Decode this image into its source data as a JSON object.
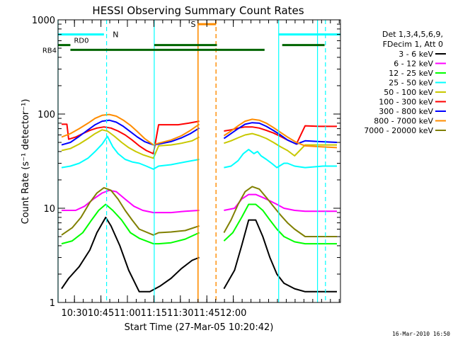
{
  "chart_data": {
    "type": "line",
    "title": "HESSI Observing Summary Count Rates",
    "xlabel": "Start Time (27-Mar-05 10:20:42)",
    "ylabel": "Count Rate (s⁻¹ detector⁻¹)",
    "yscale": "log",
    "ylim": [
      1,
      1000
    ],
    "xlim_minutes": [
      0,
      160
    ],
    "x_ticks": [
      "10:30",
      "10:45",
      "11:00",
      "11:15",
      "11:30",
      "11:45",
      "12:00"
    ],
    "y_ticks": [
      "1",
      "10",
      "100",
      "1000"
    ],
    "grid": false,
    "legend_position": "top-right",
    "legend_header": [
      "Det 1,3,4,5,6,9,",
      "FDecim 1, Att 0"
    ],
    "timestamp": "16-Mar-2010 16:50",
    "gaps": [
      [
        80.5,
        94
      ]
    ],
    "markers": {
      "n_label": "N",
      "s_label": "S",
      "rd0_label": "RD0",
      "rb4_label": "RB4",
      "cyan_solid_x": [
        0,
        54.5,
        125,
        147
      ],
      "cyan_dashed_x": [
        27.5,
        151.5
      ],
      "orange_solid_x": [
        79.3
      ],
      "orange_dashed_x": [
        89.5
      ]
    },
    "series": [
      {
        "name": "3 - 6 keV",
        "color": "#000000",
        "values": [
          [
            2,
            1.4
          ],
          [
            6,
            1.8
          ],
          [
            12,
            2.4
          ],
          [
            18,
            3.6
          ],
          [
            22,
            5.5
          ],
          [
            27,
            8
          ],
          [
            30,
            6.5
          ],
          [
            35,
            4
          ],
          [
            40,
            2.2
          ],
          [
            46,
            1.3
          ],
          [
            52,
            1.3
          ],
          [
            58,
            1.5
          ],
          [
            64,
            1.8
          ],
          [
            70,
            2.3
          ],
          [
            76,
            2.8
          ],
          [
            80,
            3
          ],
          [
            94,
            1.4
          ],
          [
            100,
            2.2
          ],
          [
            104,
            4
          ],
          [
            108,
            7.5
          ],
          [
            112,
            7.5
          ],
          [
            116,
            5
          ],
          [
            120,
            3
          ],
          [
            124,
            2
          ],
          [
            128,
            1.6
          ],
          [
            134,
            1.4
          ],
          [
            140,
            1.3
          ],
          [
            146,
            1.3
          ],
          [
            150,
            1.3
          ],
          [
            158,
            1.3
          ]
        ]
      },
      {
        "name": "6 - 12 keV",
        "color": "#ff00ff",
        "values": [
          [
            2,
            9.5
          ],
          [
            10,
            9.5
          ],
          [
            15,
            10.5
          ],
          [
            20,
            12.5
          ],
          [
            25,
            14.5
          ],
          [
            29,
            15.5
          ],
          [
            33,
            15
          ],
          [
            38,
            12.5
          ],
          [
            43,
            10.5
          ],
          [
            48,
            9.5
          ],
          [
            54,
            9
          ],
          [
            57,
            9
          ],
          [
            64,
            9
          ],
          [
            72,
            9.3
          ],
          [
            80,
            9.5
          ],
          [
            94,
            9.5
          ],
          [
            100,
            10
          ],
          [
            104,
            12.5
          ],
          [
            108,
            14
          ],
          [
            112,
            14
          ],
          [
            116,
            13
          ],
          [
            120,
            12
          ],
          [
            124,
            11
          ],
          [
            128,
            10
          ],
          [
            134,
            9.5
          ],
          [
            140,
            9.3
          ],
          [
            150,
            9.3
          ],
          [
            158,
            9.3
          ]
        ]
      },
      {
        "name": "12 - 25 keV",
        "color": "#00ff00",
        "values": [
          [
            2,
            4.2
          ],
          [
            8,
            4.5
          ],
          [
            14,
            5.5
          ],
          [
            19,
            7.5
          ],
          [
            23,
            9.5
          ],
          [
            27,
            11
          ],
          [
            31,
            9.5
          ],
          [
            36,
            7.5
          ],
          [
            41,
            5.5
          ],
          [
            46,
            4.8
          ],
          [
            54,
            4.2
          ],
          [
            57,
            4.2
          ],
          [
            64,
            4.3
          ],
          [
            72,
            4.7
          ],
          [
            80,
            5.5
          ],
          [
            94,
            4.5
          ],
          [
            99,
            5.5
          ],
          [
            104,
            8
          ],
          [
            108,
            11
          ],
          [
            112,
            11
          ],
          [
            116,
            9.5
          ],
          [
            120,
            7.5
          ],
          [
            124,
            6
          ],
          [
            128,
            5
          ],
          [
            134,
            4.4
          ],
          [
            140,
            4.2
          ],
          [
            150,
            4.2
          ],
          [
            158,
            4.2
          ]
        ]
      },
      {
        "name": "25 - 50 keV",
        "color": "#00ffff",
        "values": [
          [
            2,
            27
          ],
          [
            7,
            28
          ],
          [
            12,
            30
          ],
          [
            17,
            34
          ],
          [
            21,
            40
          ],
          [
            25,
            48
          ],
          [
            28,
            58
          ],
          [
            31,
            45
          ],
          [
            34,
            38
          ],
          [
            38,
            33
          ],
          [
            42,
            31
          ],
          [
            46,
            30
          ],
          [
            50,
            28
          ],
          [
            54,
            26
          ],
          [
            57,
            28
          ],
          [
            64,
            29
          ],
          [
            72,
            31
          ],
          [
            80,
            33
          ],
          [
            94,
            27
          ],
          [
            98,
            28
          ],
          [
            102,
            32
          ],
          [
            105,
            38
          ],
          [
            108,
            42
          ],
          [
            111,
            38
          ],
          [
            113,
            40
          ],
          [
            115,
            36
          ],
          [
            118,
            33
          ],
          [
            121,
            30
          ],
          [
            124,
            27
          ],
          [
            128,
            30
          ],
          [
            130,
            30
          ],
          [
            134,
            28
          ],
          [
            140,
            27
          ],
          [
            150,
            28
          ],
          [
            158,
            28
          ]
        ]
      },
      {
        "name": "50 - 100 keV",
        "color": "#c8c800",
        "values": [
          [
            2,
            41
          ],
          [
            7,
            43
          ],
          [
            12,
            48
          ],
          [
            17,
            55
          ],
          [
            21,
            62
          ],
          [
            25,
            68
          ],
          [
            28,
            66
          ],
          [
            32,
            58
          ],
          [
            36,
            50
          ],
          [
            40,
            44
          ],
          [
            44,
            40
          ],
          [
            48,
            37
          ],
          [
            54,
            34
          ],
          [
            57,
            46
          ],
          [
            64,
            47
          ],
          [
            70,
            49
          ],
          [
            76,
            52
          ],
          [
            80,
            57
          ],
          [
            94,
            49
          ],
          [
            98,
            52
          ],
          [
            102,
            56
          ],
          [
            106,
            60
          ],
          [
            110,
            62
          ],
          [
            114,
            59
          ],
          [
            118,
            55
          ],
          [
            122,
            50
          ],
          [
            126,
            45
          ],
          [
            130,
            41
          ],
          [
            134,
            36
          ],
          [
            140,
            47
          ],
          [
            148,
            47
          ],
          [
            158,
            47
          ]
        ]
      },
      {
        "name": "100 - 300 keV",
        "color": "#ff0000",
        "values": [
          [
            2,
            78
          ],
          [
            5,
            78
          ],
          [
            6,
            54
          ],
          [
            10,
            57
          ],
          [
            14,
            62
          ],
          [
            18,
            67
          ],
          [
            22,
            71
          ],
          [
            26,
            73
          ],
          [
            30,
            71
          ],
          [
            34,
            66
          ],
          [
            38,
            60
          ],
          [
            42,
            53
          ],
          [
            46,
            46
          ],
          [
            50,
            41
          ],
          [
            54,
            38
          ],
          [
            57,
            77
          ],
          [
            62,
            77
          ],
          [
            68,
            77
          ],
          [
            74,
            80
          ],
          [
            80,
            84
          ],
          [
            94,
            66
          ],
          [
            98,
            68
          ],
          [
            102,
            71
          ],
          [
            106,
            73
          ],
          [
            110,
            73
          ],
          [
            114,
            71
          ],
          [
            118,
            67
          ],
          [
            122,
            63
          ],
          [
            126,
            58
          ],
          [
            130,
            53
          ],
          [
            135,
            48
          ],
          [
            140,
            75
          ],
          [
            148,
            74
          ],
          [
            158,
            74
          ]
        ]
      },
      {
        "name": "300 - 800 keV",
        "color": "#0000ff",
        "values": [
          [
            2,
            47
          ],
          [
            7,
            50
          ],
          [
            12,
            58
          ],
          [
            17,
            68
          ],
          [
            21,
            77
          ],
          [
            25,
            84
          ],
          [
            29,
            86
          ],
          [
            33,
            82
          ],
          [
            37,
            74
          ],
          [
            41,
            65
          ],
          [
            45,
            57
          ],
          [
            49,
            51
          ],
          [
            54,
            47
          ],
          [
            57,
            48
          ],
          [
            64,
            51
          ],
          [
            70,
            56
          ],
          [
            75,
            62
          ],
          [
            80,
            71
          ],
          [
            94,
            55
          ],
          [
            98,
            62
          ],
          [
            102,
            70
          ],
          [
            106,
            78
          ],
          [
            110,
            81
          ],
          [
            114,
            80
          ],
          [
            118,
            74
          ],
          [
            122,
            67
          ],
          [
            126,
            60
          ],
          [
            130,
            53
          ],
          [
            135,
            48
          ],
          [
            140,
            52
          ],
          [
            148,
            51
          ],
          [
            158,
            50
          ]
        ]
      },
      {
        "name": "800 - 7000 keV",
        "color": "#ff8c00",
        "values": [
          [
            2,
            57
          ],
          [
            7,
            62
          ],
          [
            12,
            70
          ],
          [
            17,
            80
          ],
          [
            21,
            90
          ],
          [
            25,
            97
          ],
          [
            29,
            99
          ],
          [
            33,
            95
          ],
          [
            37,
            86
          ],
          [
            41,
            76
          ],
          [
            45,
            65
          ],
          [
            49,
            55
          ],
          [
            54,
            47
          ],
          [
            57,
            49
          ],
          [
            64,
            53
          ],
          [
            70,
            59
          ],
          [
            75,
            67
          ],
          [
            80,
            78
          ],
          [
            94,
            59
          ],
          [
            98,
            66
          ],
          [
            102,
            75
          ],
          [
            106,
            84
          ],
          [
            110,
            88
          ],
          [
            114,
            86
          ],
          [
            118,
            80
          ],
          [
            122,
            72
          ],
          [
            126,
            64
          ],
          [
            130,
            57
          ],
          [
            135,
            50
          ],
          [
            140,
            46
          ],
          [
            148,
            45
          ],
          [
            158,
            44
          ]
        ]
      },
      {
        "name": "7000 - 20000 keV",
        "color": "#808000",
        "values": [
          [
            2,
            5.2
          ],
          [
            8,
            6.2
          ],
          [
            13,
            8
          ],
          [
            18,
            11.5
          ],
          [
            22,
            14.5
          ],
          [
            26,
            16.5
          ],
          [
            30,
            15.5
          ],
          [
            34,
            12.5
          ],
          [
            38,
            9.5
          ],
          [
            42,
            7.5
          ],
          [
            46,
            6
          ],
          [
            54,
            5.2
          ],
          [
            57,
            5.5
          ],
          [
            64,
            5.6
          ],
          [
            72,
            5.8
          ],
          [
            80,
            6.5
          ],
          [
            94,
            5.5
          ],
          [
            98,
            7.5
          ],
          [
            102,
            11
          ],
          [
            106,
            15
          ],
          [
            110,
            17
          ],
          [
            114,
            16
          ],
          [
            118,
            13
          ],
          [
            122,
            10.5
          ],
          [
            126,
            8.5
          ],
          [
            130,
            7
          ],
          [
            134,
            6
          ],
          [
            140,
            5
          ],
          [
            150,
            5
          ],
          [
            158,
            5
          ]
        ]
      }
    ]
  }
}
